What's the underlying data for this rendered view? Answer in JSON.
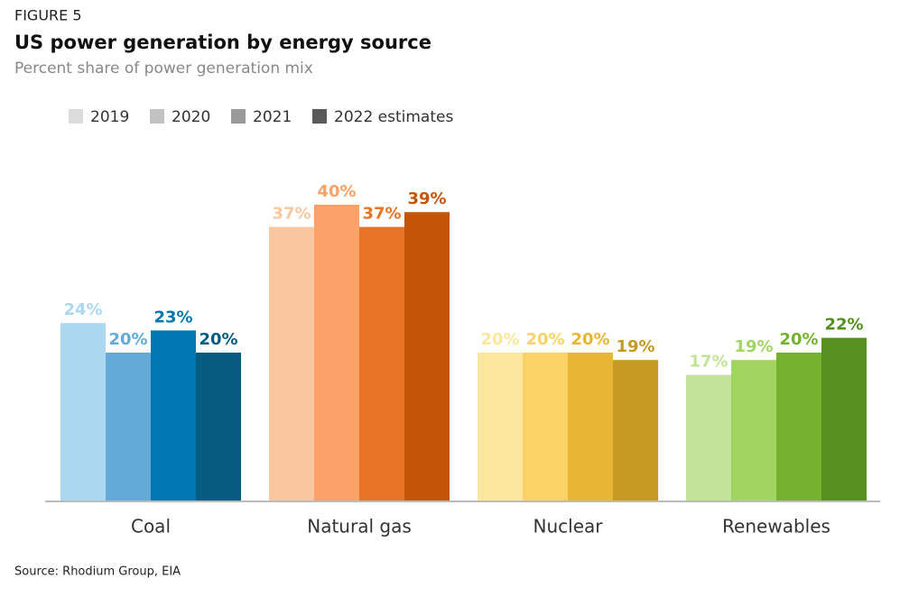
{
  "chart_data": {
    "type": "bar",
    "figure_label": "FIGURE 5",
    "title": "US power generation by energy source",
    "subtitle": "Percent share of power generation mix",
    "source": "Source: Rhodium Group, EIA",
    "categories": [
      "Coal",
      "Natural gas",
      "Nuclear",
      "Renewables"
    ],
    "series": [
      {
        "name": "2019",
        "color": "#dcdcdc",
        "colors": [
          "#abd8f0",
          "#f8c7a0",
          "#fde69e",
          "#c2e39a"
        ],
        "values": [
          24,
          37,
          20,
          17
        ],
        "value_labels": [
          "24%",
          "37%",
          "20%",
          "17%"
        ]
      },
      {
        "name": "2020",
        "color": "#c2c2c2",
        "colors": [
          "#63aad8",
          "#fba268",
          "#f9d366",
          "#a0d562"
        ],
        "values": [
          20,
          40,
          20,
          19
        ],
        "value_labels": [
          "20%",
          "40%",
          "20%",
          "19%"
        ]
      },
      {
        "name": "2021",
        "color": "#9a9a9a",
        "colors": [
          "#0077b0",
          "#e87428",
          "#e8b535",
          "#74b22e"
        ],
        "values": [
          23,
          37,
          20,
          20
        ],
        "value_labels": [
          "23%",
          "37%",
          "20%",
          "20%"
        ]
      },
      {
        "name": "2022 estimates",
        "color": "#5a5a5a",
        "colors": [
          "#075a80",
          "#c45408",
          "#c49a20",
          "#56901e"
        ],
        "values": [
          20,
          39,
          19,
          22
        ],
        "value_labels": [
          "20%",
          "39%",
          "19%",
          "22%"
        ]
      }
    ]
  }
}
